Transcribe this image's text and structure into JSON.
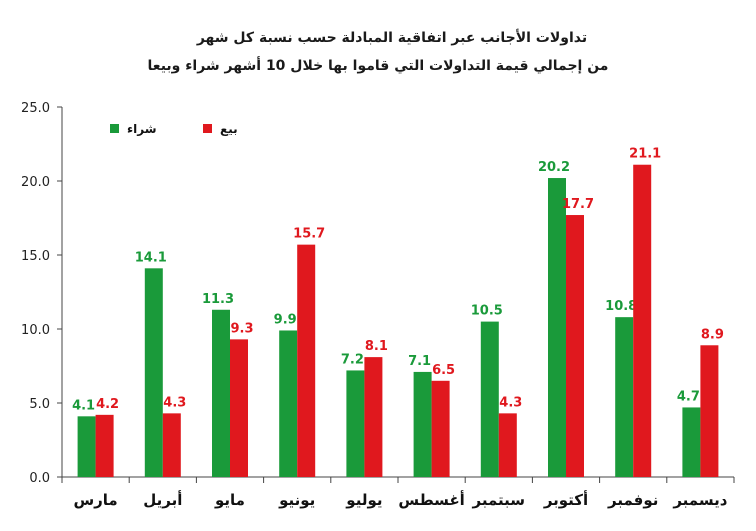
{
  "chart_data": {
    "type": "bar",
    "title": "تداولات الأجانب عبر اتفاقية المبادلة حسب  نسبة كل شهر",
    "subtitle": "من إجمالي قيمة التداولات التي قاموا بها خلال 10 أشهر شراء وبيعا",
    "categories": [
      "مارس",
      "أبريل",
      "مايو",
      "يونيو",
      "يوليو",
      "أغسطس",
      "سبتمبر",
      "أكتوبر",
      "نوفمبر",
      "ديسمبر"
    ],
    "series": [
      {
        "name": "شراء",
        "color": "#1a9a3a",
        "values": [
          4.1,
          14.1,
          11.3,
          9.9,
          7.2,
          7.1,
          10.5,
          20.2,
          10.8,
          4.7
        ]
      },
      {
        "name": "بيع",
        "color": "#e0181e",
        "values": [
          4.2,
          4.3,
          9.3,
          15.7,
          8.1,
          6.5,
          4.3,
          17.7,
          21.1,
          8.9
        ]
      }
    ],
    "ylim": [
      0,
      25
    ],
    "yticks": [
      "0.0",
      "5.0",
      "10.0",
      "15.0",
      "20.0",
      "25.0"
    ],
    "grid": false,
    "legend": "top-left"
  }
}
